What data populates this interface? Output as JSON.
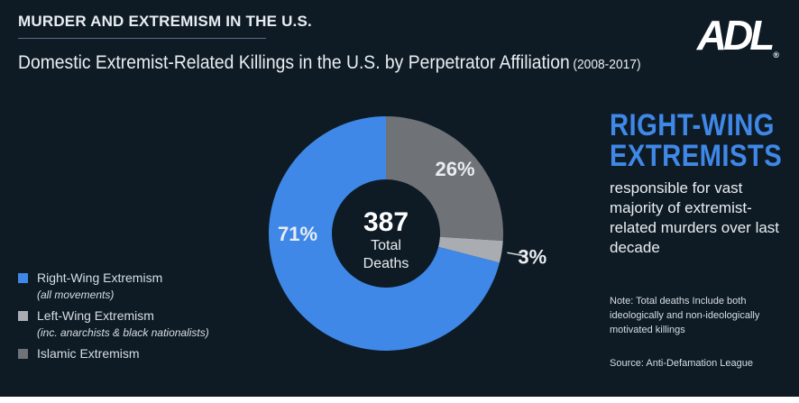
{
  "header": {
    "kicker": "MURDER AND EXTREMISM IN THE U.S.",
    "title": "Domestic Extremist-Related Killings in the U.S. by Perpetrator Affiliation",
    "years": "(2008-2017)",
    "logo": "ADL",
    "logo_mark": "®"
  },
  "chart_data": {
    "type": "pie",
    "title": "Domestic Extremist-Related Killings in the U.S. by Perpetrator Affiliation (2008-2017)",
    "total": 387,
    "center_label": [
      "Total",
      "Deaths"
    ],
    "series": [
      {
        "name": "Right-Wing Extremism",
        "note": "(all movements)",
        "value": 71,
        "label": "71%",
        "color": "#3f88e8"
      },
      {
        "name": "Left-Wing Extremism",
        "note": "(inc. anarchists & black nationalists)",
        "value": 3,
        "label": "3%",
        "color": "#a9adb2"
      },
      {
        "name": "Islamic Extremism",
        "note": "",
        "value": 26,
        "label": "26%",
        "color": "#6f7276"
      }
    ],
    "legend_position": "bottom-left"
  },
  "callout": {
    "headline": [
      "RIGHT-WING",
      "EXTREMISTS"
    ],
    "body": "responsible for vast majority of extremist-related murders over last decade"
  },
  "footnote": "Note: Total deaths Include both ideologically and non-ideologically motivated killings",
  "source": "Source: Anti-Defamation League"
}
